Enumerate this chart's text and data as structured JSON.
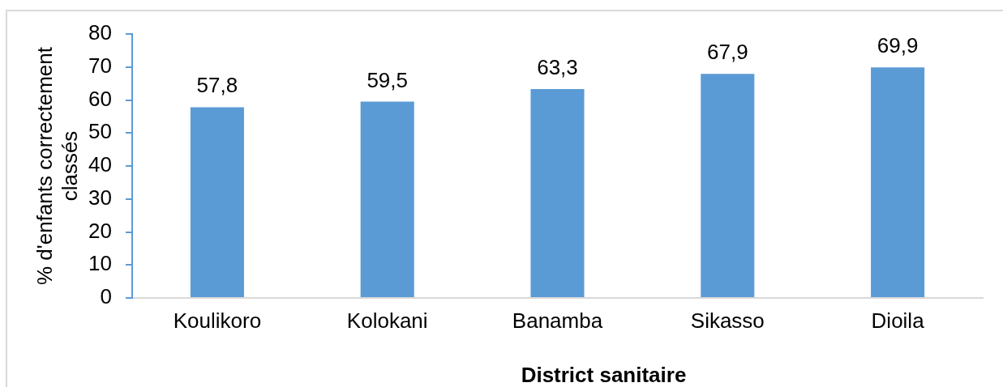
{
  "chart_data": {
    "type": "bar",
    "xlabel": "District sanitaire",
    "ylabel": "% d'enfants correctement classés",
    "categories": [
      "Koulikoro",
      "Kolokani",
      "Banamba",
      "Sikasso",
      "Dioila"
    ],
    "values": [
      57.8,
      59.5,
      63.3,
      67.9,
      69.9
    ],
    "color": "#5b9bd5",
    "value_labels": [
      "57,8",
      "59,5",
      "63,3",
      "67,9",
      "69,9"
    ],
    "ylim": [
      0,
      80
    ],
    "yticks": [
      0,
      10,
      20,
      30,
      40,
      50,
      60,
      70,
      80
    ]
  }
}
